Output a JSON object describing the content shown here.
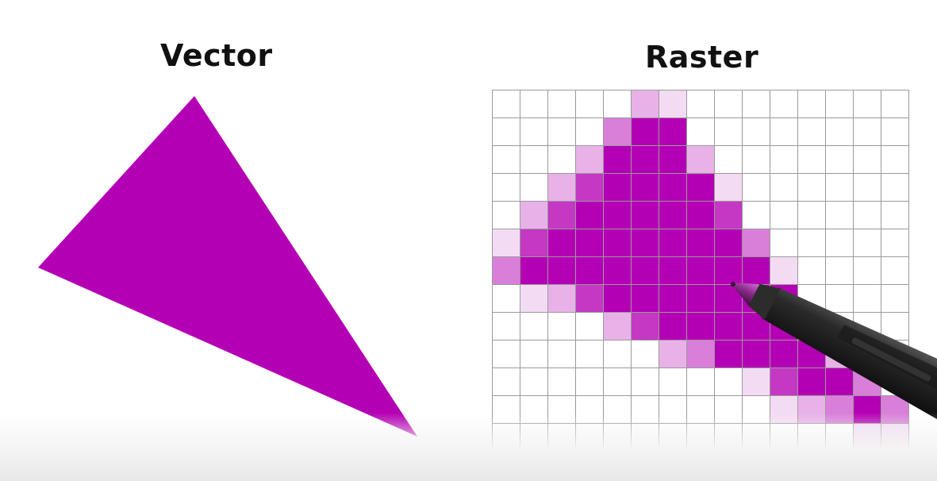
{
  "labels": {
    "vector": "Vector",
    "raster": "Raster"
  },
  "colors": {
    "fill": "#b400b4",
    "grid_line": "#9a9a9a",
    "background": "#ffffff"
  },
  "raster_grid": {
    "rows": 13,
    "cols": 15,
    "cells": [
      [
        0,
        0,
        0,
        0,
        0,
        2,
        1,
        0,
        0,
        0,
        0,
        0,
        0,
        0,
        0
      ],
      [
        0,
        0,
        0,
        0,
        3,
        5,
        5,
        0,
        0,
        0,
        0,
        0,
        0,
        0,
        0
      ],
      [
        0,
        0,
        0,
        2,
        5,
        5,
        5,
        2,
        0,
        0,
        0,
        0,
        0,
        0,
        0
      ],
      [
        0,
        0,
        2,
        4,
        5,
        5,
        5,
        5,
        1,
        0,
        0,
        0,
        0,
        0,
        0
      ],
      [
        0,
        2,
        4,
        5,
        5,
        5,
        5,
        5,
        4,
        0,
        0,
        0,
        0,
        0,
        0
      ],
      [
        1,
        4,
        5,
        5,
        5,
        5,
        5,
        5,
        5,
        3,
        0,
        0,
        0,
        0,
        0
      ],
      [
        3,
        5,
        5,
        5,
        5,
        5,
        5,
        5,
        5,
        5,
        1,
        0,
        0,
        0,
        0
      ],
      [
        0,
        1,
        2,
        4,
        5,
        5,
        5,
        5,
        5,
        5,
        5,
        0,
        0,
        0,
        0
      ],
      [
        0,
        0,
        0,
        0,
        2,
        4,
        5,
        5,
        5,
        5,
        5,
        0,
        0,
        0,
        0
      ],
      [
        0,
        0,
        0,
        0,
        0,
        0,
        2,
        3,
        5,
        5,
        5,
        5,
        2,
        0,
        0
      ],
      [
        0,
        0,
        0,
        0,
        0,
        0,
        0,
        0,
        0,
        1,
        4,
        5,
        5,
        3,
        0
      ],
      [
        0,
        0,
        0,
        0,
        0,
        0,
        0,
        0,
        0,
        0,
        1,
        2,
        3,
        5,
        3
      ],
      [
        0,
        0,
        0,
        0,
        0,
        0,
        0,
        0,
        0,
        0,
        0,
        0,
        0,
        1,
        1
      ]
    ]
  }
}
